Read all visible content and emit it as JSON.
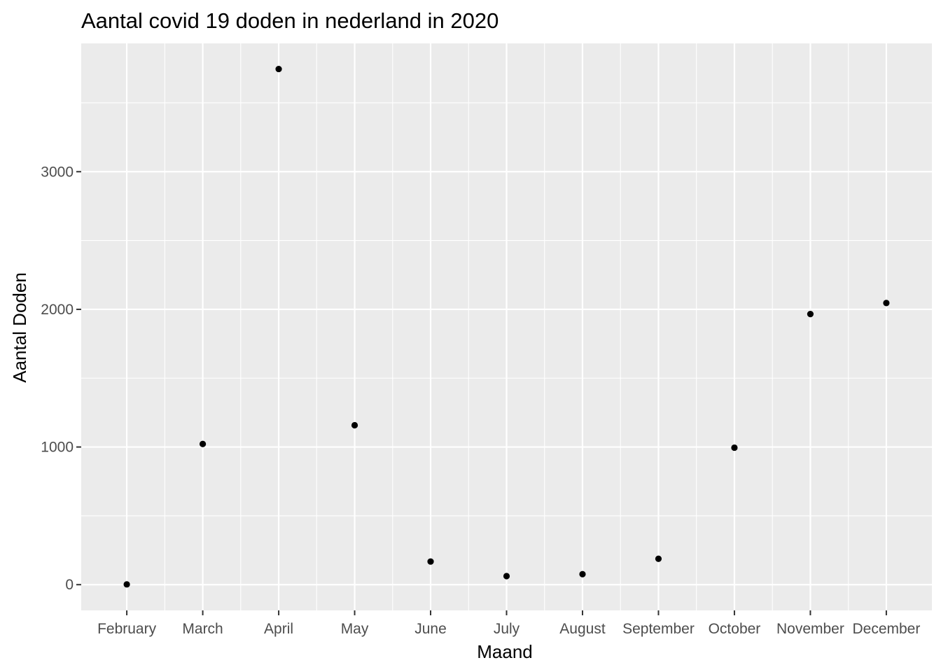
{
  "chart_data": {
    "type": "scatter",
    "title": "Aantal covid 19 doden in nederland in 2020",
    "xlabel": "Maand",
    "ylabel": "Aantal Doden",
    "categories": [
      "February",
      "March",
      "April",
      "May",
      "June",
      "July",
      "August",
      "September",
      "October",
      "November",
      "December"
    ],
    "values": [
      2,
      1022,
      3746,
      1158,
      168,
      62,
      76,
      188,
      995,
      1966,
      2046
    ],
    "yticks": [
      0,
      1000,
      2000,
      3000
    ],
    "ytick_labels": [
      "0",
      "1000",
      "2000",
      "3000"
    ],
    "ylim": [
      -187,
      3932
    ],
    "grid": true,
    "legend": "none",
    "colors": {
      "panel_background": "#EBEBEB",
      "grid": "#FFFFFF",
      "point": "#000000",
      "tick_text": "#4D4D4D",
      "tick_mark": "#333333"
    }
  }
}
